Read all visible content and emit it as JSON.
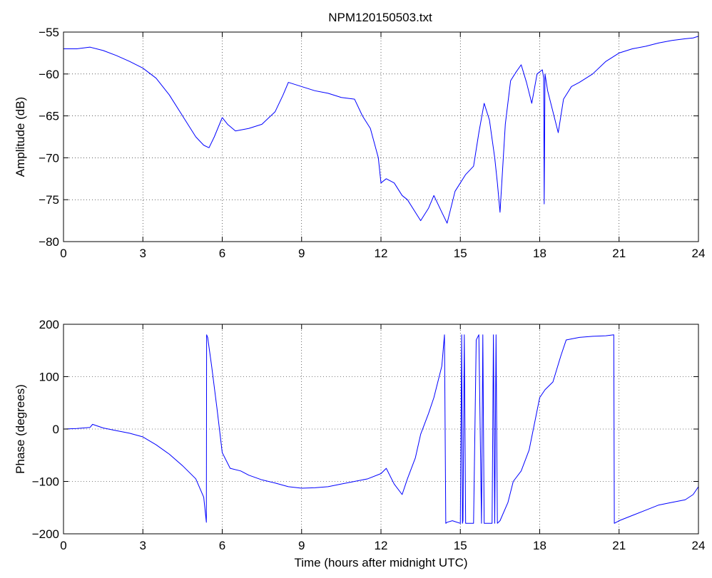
{
  "title": "NPM120150503.txt",
  "chart_data": [
    {
      "type": "line",
      "ylabel": "Amplitude (dB)",
      "xlim": [
        0,
        24
      ],
      "ylim": [
        -80,
        -55
      ],
      "xticks": [
        0,
        3,
        6,
        9,
        12,
        15,
        18,
        21,
        24
      ],
      "yticks": [
        -80,
        -75,
        -70,
        -65,
        -60,
        -55
      ],
      "grid": true,
      "color": "#0000ff",
      "series": [
        {
          "x": [
            0,
            0.5,
            1.0,
            1.5,
            2.0,
            2.5,
            3.0,
            3.5,
            4.0,
            4.5,
            5.0,
            5.3,
            5.5,
            5.7,
            6.0,
            6.2,
            6.5,
            7.0,
            7.5,
            8.0,
            8.3,
            8.5,
            9.0,
            9.5,
            10.0,
            10.5,
            11.0,
            11.3,
            11.6,
            11.9,
            12.0,
            12.2,
            12.5,
            12.8,
            13.0,
            13.3,
            13.5,
            13.8,
            14.0,
            14.3,
            14.5,
            14.8,
            15.0,
            15.2,
            15.5,
            15.7,
            15.9,
            16.1,
            16.3,
            16.4,
            16.5,
            16.7,
            16.9,
            17.1,
            17.3,
            17.5,
            17.7,
            17.9,
            18.1,
            18.15,
            18.17,
            18.2,
            18.3,
            18.5,
            18.7,
            18.9,
            19.2,
            19.5,
            20.0,
            20.5,
            21.0,
            21.5,
            22.0,
            22.5,
            23.0,
            23.5,
            23.8,
            24.0
          ],
          "y": [
            -57.0,
            -57.0,
            -56.8,
            -57.2,
            -57.8,
            -58.5,
            -59.3,
            -60.5,
            -62.5,
            -65.0,
            -67.5,
            -68.5,
            -68.8,
            -67.5,
            -65.2,
            -66.0,
            -66.8,
            -66.5,
            -66.0,
            -64.5,
            -62.5,
            -61.0,
            -61.5,
            -62.0,
            -62.3,
            -62.8,
            -63.0,
            -65.0,
            -66.5,
            -70.0,
            -73.0,
            -72.5,
            -73.0,
            -74.5,
            -75.0,
            -76.5,
            -77.5,
            -76.0,
            -74.5,
            -76.5,
            -77.8,
            -74.0,
            -73.0,
            -72.0,
            -71.0,
            -67.0,
            -63.5,
            -65.5,
            -70.0,
            -73.0,
            -76.5,
            -66.0,
            -60.8,
            -59.8,
            -58.9,
            -61.0,
            -63.5,
            -60.0,
            -59.5,
            -60.5,
            -75.5,
            -60.0,
            -62.0,
            -64.5,
            -67.0,
            -63.0,
            -61.5,
            -61.0,
            -60.0,
            -58.5,
            -57.5,
            -57.0,
            -56.7,
            -56.3,
            -56.0,
            -55.8,
            -55.7,
            -55.5
          ]
        }
      ]
    },
    {
      "type": "line",
      "xlabel": "Time (hours after midnight UTC)",
      "ylabel": "Phase (degrees)",
      "xlim": [
        0,
        24
      ],
      "ylim": [
        -200,
        200
      ],
      "xticks": [
        0,
        3,
        6,
        9,
        12,
        15,
        18,
        21,
        24
      ],
      "yticks": [
        -200,
        -100,
        0,
        100,
        200
      ],
      "grid": true,
      "color": "#0000ff",
      "series": [
        {
          "x": [
            0,
            0.5,
            1.0,
            1.1,
            1.5,
            2.0,
            2.5,
            3.0,
            3.5,
            4.0,
            4.5,
            5.0,
            5.3,
            5.4,
            5.41,
            5.45,
            5.6,
            5.8,
            6.0,
            6.3,
            6.7,
            7.0,
            7.5,
            8.0,
            8.5,
            9.0,
            9.5,
            10.0,
            10.5,
            11.0,
            11.5,
            12.0,
            12.2,
            12.5,
            12.8,
            13.0,
            13.3,
            13.5,
            13.8,
            14.0,
            14.3,
            14.4,
            14.45,
            14.5,
            14.7,
            15.0,
            15.05,
            15.08,
            15.1,
            15.15,
            15.2,
            15.5,
            15.6,
            15.7,
            15.8,
            15.85,
            15.9,
            16.0,
            16.2,
            16.25,
            16.3,
            16.35,
            16.4,
            16.5,
            16.8,
            17.0,
            17.3,
            17.6,
            18.0,
            18.2,
            18.5,
            18.8,
            19.0,
            19.5,
            20.0,
            20.5,
            20.8,
            20.82,
            21.0,
            21.5,
            22.0,
            22.5,
            23.0,
            23.5,
            23.8,
            24.0
          ],
          "y": [
            0,
            1,
            3,
            9,
            2,
            -3,
            -8,
            -15,
            -30,
            -48,
            -70,
            -95,
            -130,
            -178,
            180,
            175,
            120,
            40,
            -45,
            -75,
            -80,
            -88,
            -97,
            -103,
            -110,
            -113,
            -112,
            -110,
            -105,
            -100,
            -95,
            -85,
            -75,
            -105,
            -125,
            -95,
            -55,
            -10,
            30,
            60,
            120,
            180,
            -180,
            -178,
            -175,
            -180,
            180,
            -180,
            -175,
            180,
            -180,
            -180,
            170,
            180,
            -180,
            180,
            -180,
            -180,
            -180,
            180,
            -180,
            180,
            -180,
            -175,
            -140,
            -100,
            -80,
            -40,
            60,
            75,
            90,
            140,
            170,
            175,
            177,
            178,
            180,
            -180,
            -175,
            -165,
            -155,
            -145,
            -140,
            -135,
            -125,
            -110
          ]
        }
      ]
    }
  ]
}
